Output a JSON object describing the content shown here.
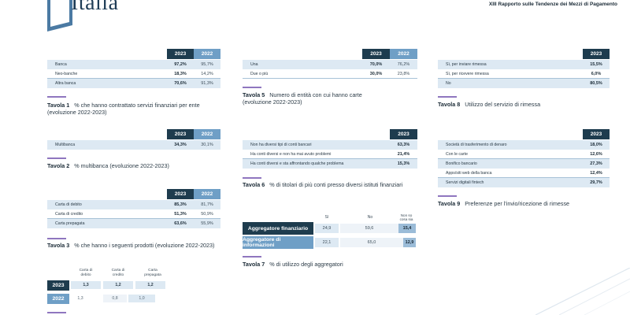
{
  "header": {
    "logo_text": "Italia",
    "report_title": "XIII Rapporto sulle Tendenze dei Mezzi di Pagamento"
  },
  "colors": {
    "dark": "#1e3c4e",
    "light": "#6f9fc6",
    "shade": "#dde9f3",
    "accent": "#8f76bf"
  },
  "t1": {
    "years": [
      "2023",
      "2022"
    ],
    "rows": [
      {
        "label": "Banca",
        "v23": "97,2%",
        "v22": "95,7%"
      },
      {
        "label": "Neo-banche",
        "v23": "18,3%",
        "v22": "14,2%"
      },
      {
        "label": "Altra banca",
        "v23": "70,6%",
        "v22": "91,3%"
      }
    ],
    "num": "Tavola 1",
    "caption": "% che hanno contrattato servizi finanziari per ente (evoluzione 2022-2023)"
  },
  "t2": {
    "years": [
      "2023",
      "2022"
    ],
    "rows": [
      {
        "label": "Multibanca",
        "v23": "34,3%",
        "v22": "30,1%"
      }
    ],
    "num": "Tavola 2",
    "caption": "% multibanca (evoluzione 2022-2023)"
  },
  "t3": {
    "years": [
      "2023",
      "2022"
    ],
    "rows": [
      {
        "label": "Carta di debito",
        "v23": "85,3%",
        "v22": "81,7%"
      },
      {
        "label": "Carta di credito",
        "v23": "51,3%",
        "v22": "50,9%"
      },
      {
        "label": "Carta prepagata",
        "v23": "63,6%",
        "v22": "55,9%"
      }
    ],
    "num": "Tavola 3",
    "caption": "% che hanno i seguenti prodotti (evoluzione 2022-2023)"
  },
  "t5": {
    "years": [
      "2023",
      "2022"
    ],
    "rows": [
      {
        "label": "Una",
        "v23": "70,0%",
        "v22": "76,2%"
      },
      {
        "label": "Due o più",
        "v23": "30,0%",
        "v22": "23,8%"
      }
    ],
    "num": "Tavola 5",
    "caption": "Numero di entità con cui hanno carte (evoluzione 2022-2023)"
  },
  "t6": {
    "year": "2023",
    "rows": [
      {
        "label": "Non ha diversi tipi di conti bancari",
        "v": "63,3%"
      },
      {
        "label": "Ha conti diversi e non ha mai avuto problemi",
        "v": "21,4%"
      },
      {
        "label": "Ha conti diversi e sta affrontando qualche problema",
        "v": "15,3%"
      }
    ],
    "num": "Tavola 6",
    "caption": "% di titolari di più conti presso diversi istituti finanziari"
  },
  "t7": {
    "cols": [
      "Sì",
      "No",
      "Non so cosa sia"
    ],
    "rows": [
      {
        "label": "Aggregatore finanziario",
        "vals": [
          "24,9",
          "59,6",
          "15,4"
        ]
      },
      {
        "label": "Aggregatore di informazioni",
        "vals": [
          "22,1",
          "65,0",
          "12,9"
        ]
      }
    ],
    "num": "Tavola 7",
    "caption": "% di utilizzo degli aggregatori"
  },
  "t8": {
    "year": "2023",
    "rows": [
      {
        "label": "Sì, per inviare rimessa",
        "v": "15,5%"
      },
      {
        "label": "Sì, per ricevere rimessa",
        "v": "6,0%"
      },
      {
        "label": "No",
        "v": "80,5%"
      }
    ],
    "num": "Tavola 8",
    "caption": "Utilizzo del servizio di rimessa"
  },
  "t9": {
    "year": "2023",
    "rows": [
      {
        "label": "Società di trasferimento di denaro",
        "v": "18,0%"
      },
      {
        "label": "Con le carte",
        "v": "12,6%"
      },
      {
        "label": "Bonifico bancario",
        "v": "27,3%"
      },
      {
        "label": "Apps/siti web della banca",
        "v": "12,4%"
      },
      {
        "label": "Servizi digitali fintech",
        "v": "29,7%"
      }
    ],
    "num": "Tavola 9",
    "caption": "Preferenze per l'invio/ricezione di rimesse"
  },
  "t4": {
    "cols": [
      "Carta di debito",
      "Carta di credito",
      "Carta prepagata"
    ],
    "rows": [
      {
        "year": "2023",
        "vals": [
          "1,3",
          "1,2",
          "1,2"
        ]
      },
      {
        "year": "2022",
        "vals": [
          "1,3",
          "0,8",
          "1,0"
        ]
      }
    ]
  }
}
